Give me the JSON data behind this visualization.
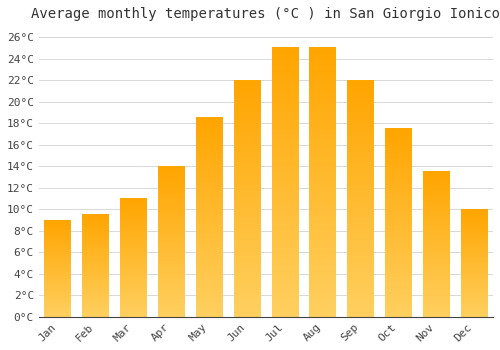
{
  "title": "Average monthly temperatures (°C ) in San Giorgio Ionico",
  "months": [
    "Jan",
    "Feb",
    "Mar",
    "Apr",
    "May",
    "Jun",
    "Jul",
    "Aug",
    "Sep",
    "Oct",
    "Nov",
    "Dec"
  ],
  "temperatures": [
    9.0,
    9.5,
    11.0,
    14.0,
    18.5,
    22.0,
    25.0,
    25.0,
    22.0,
    17.5,
    13.5,
    10.0
  ],
  "bar_color_top": "#FFA500",
  "bar_color_bottom": "#FFD060",
  "background_color": "#FFFFFF",
  "plot_bg_color": "#FFFFFF",
  "grid_color": "#D8D8D8",
  "text_color": "#444444",
  "title_color": "#333333",
  "ylim": [
    0,
    27
  ],
  "yticks": [
    0,
    2,
    4,
    6,
    8,
    10,
    12,
    14,
    16,
    18,
    20,
    22,
    24,
    26
  ],
  "title_fontsize": 10,
  "tick_fontsize": 8,
  "font_family": "monospace"
}
